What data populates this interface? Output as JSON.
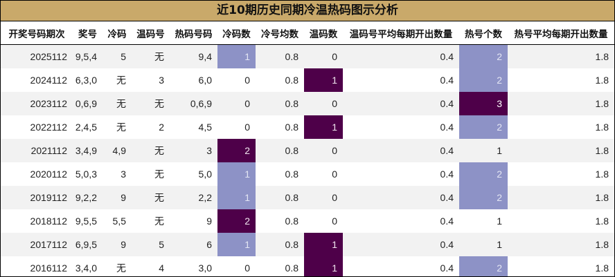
{
  "title": "近10期历史同期冷温热码图示分析",
  "colors": {
    "header_bg": "#c9a96a",
    "stripe": "#f2f2f2",
    "level_light": "#8d92c6",
    "level_dark": "#4e0049"
  },
  "columns": [
    "开奖号码期次",
    "奖号",
    "冷码",
    "温码号",
    "热码号码",
    "冷码数",
    "冷号均数",
    "温码数",
    "温码号平均每期开出数量",
    "热号个数",
    "热号平均每期开出数量"
  ],
  "rows": [
    [
      "2025112",
      "9,5,4",
      "5",
      "无",
      "9,4",
      "1",
      "0.8",
      "0",
      "0.4",
      "2",
      "1.8"
    ],
    [
      "2024112",
      "6,3,0",
      "无",
      "3",
      "6,0",
      "0",
      "0.8",
      "1",
      "0.4",
      "2",
      "1.8"
    ],
    [
      "2023112",
      "0,6,9",
      "无",
      "无",
      "0,6,9",
      "0",
      "0.8",
      "0",
      "0.4",
      "3",
      "1.8"
    ],
    [
      "2022112",
      "2,4,5",
      "无",
      "2",
      "4,5",
      "0",
      "0.8",
      "1",
      "0.4",
      "2",
      "1.8"
    ],
    [
      "2021112",
      "3,4,9",
      "4,9",
      "无",
      "3",
      "2",
      "0.8",
      "0",
      "0.4",
      "1",
      "1.8"
    ],
    [
      "2020112",
      "5,0,3",
      "3",
      "无",
      "5,0",
      "1",
      "0.8",
      "0",
      "0.4",
      "2",
      "1.8"
    ],
    [
      "2019112",
      "9,2,2",
      "9",
      "无",
      "2,2",
      "1",
      "0.8",
      "0",
      "0.4",
      "2",
      "1.8"
    ],
    [
      "2018112",
      "9,5,5",
      "5,5",
      "无",
      "9",
      "2",
      "0.8",
      "0",
      "0.4",
      "1",
      "1.8"
    ],
    [
      "2017112",
      "6,9,5",
      "9",
      "5",
      "6",
      "1",
      "0.8",
      "1",
      "0.4",
      "1",
      "1.8"
    ],
    [
      "2016112",
      "3,4,0",
      "无",
      "4",
      "3,0",
      "0",
      "0.8",
      "1",
      "0.4",
      "2",
      "1.8"
    ]
  ]
}
